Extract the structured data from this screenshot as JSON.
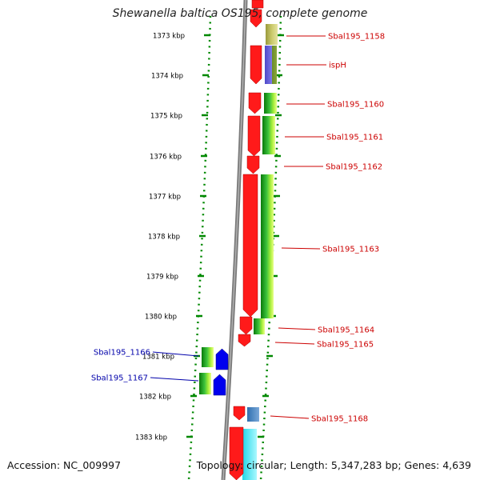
{
  "title": "Shewanella baltica OS195, complete genome",
  "footer": {
    "accession": "Accession: NC_009997",
    "summary": "Topology: circular; Length: 5,347,283 bp; Genes: 4,639"
  },
  "colors": {
    "cds_red": "#ff1a1a",
    "cds_blue": "#0000ee",
    "plus_label": "#cc0000",
    "minus_label": "#0000aa",
    "backbone": "#7a7a7a",
    "ruler_dots": "#008800"
  },
  "ruler": {
    "ticks": [
      "1373 kbp",
      "1374 kbp",
      "1375 kbp",
      "1376 kbp",
      "1377 kbp",
      "1378 kbp",
      "1379 kbp",
      "1380 kbp",
      "1381 kbp",
      "1382 kbp",
      "1383 kbp"
    ]
  },
  "genes": [
    {
      "name": "Sbal195_1158",
      "strand": "plus"
    },
    {
      "name": "ispH",
      "strand": "plus"
    },
    {
      "name": "Sbal195_1160",
      "strand": "plus"
    },
    {
      "name": "Sbal195_1161",
      "strand": "plus"
    },
    {
      "name": "Sbal195_1162",
      "strand": "plus"
    },
    {
      "name": "Sbal195_1163",
      "strand": "plus"
    },
    {
      "name": "Sbal195_1164",
      "strand": "plus"
    },
    {
      "name": "Sbal195_1165",
      "strand": "plus"
    },
    {
      "name": "Sbal195_1166",
      "strand": "minus"
    },
    {
      "name": "Sbal195_1167",
      "strand": "minus"
    },
    {
      "name": "Sbal195_1168",
      "strand": "plus"
    }
  ]
}
